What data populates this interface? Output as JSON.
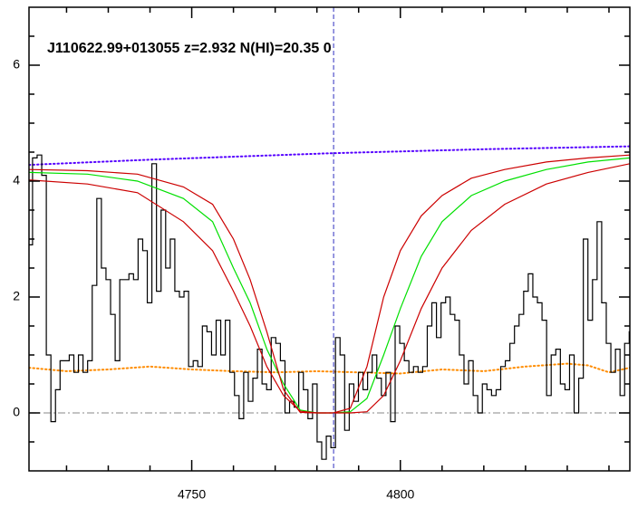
{
  "chart_data": {
    "type": "line",
    "annotation": "J110622.99+013055 z=2.932 N(HI)=20.35 0",
    "xlim": [
      4711,
      4855
    ],
    "ylim": [
      -1,
      7
    ],
    "xticks": [
      4750,
      4800
    ],
    "yticks": [
      0,
      2,
      4,
      6
    ],
    "xminorticks": [
      4720,
      4730,
      4740,
      4760,
      4770,
      4780,
      4790,
      4810,
      4820,
      4830,
      4840,
      4850
    ],
    "yminorticks": [
      -0.5,
      0.5,
      1,
      1.5,
      2.5,
      3,
      3.5,
      4.5,
      5,
      5.5,
      6.5
    ],
    "vline": {
      "x": 4784,
      "color": "#3030c0",
      "dash": true
    },
    "series": [
      {
        "color": "#a0a0a0",
        "dash": "dashdot",
        "x": [
          4711,
          4855
        ],
        "values": [
          0,
          0
        ]
      },
      {
        "color": "#ff8c00",
        "dash": "dot",
        "x": [
          4711,
          4720,
          4730,
          4740,
          4750,
          4760,
          4770,
          4780,
          4790,
          4800,
          4810,
          4820,
          4830,
          4840,
          4845,
          4850,
          4855
        ],
        "values": [
          0.78,
          0.72,
          0.75,
          0.8,
          0.75,
          0.72,
          0.7,
          0.72,
          0.7,
          0.68,
          0.75,
          0.72,
          0.8,
          0.85,
          0.82,
          0.7,
          0.78
        ]
      },
      {
        "color": "#5500ff",
        "dash": "dot",
        "x": [
          4711,
          4740,
          4783,
          4820,
          4855
        ],
        "values": [
          4.28,
          4.37,
          4.48,
          4.55,
          4.6
        ]
      },
      {
        "color": "#000000",
        "step": true,
        "x": [
          4711.3,
          4712.4,
          4713.5,
          4714.6,
          4715.7,
          4716.8,
          4717.9,
          4719.0,
          4720.1,
          4721.2,
          4722.3,
          4723.4,
          4724.5,
          4725.6,
          4726.7,
          4727.8,
          4728.9,
          4730.0,
          4731.1,
          4732.2,
          4733.3,
          4734.4,
          4735.5,
          4736.6,
          4737.7,
          4738.8,
          4739.9,
          4741.0,
          4742.1,
          4743.2,
          4744.3,
          4745.4,
          4746.5,
          4747.6,
          4748.7,
          4749.8,
          4750.9,
          4752.0,
          4753.1,
          4754.2,
          4755.3,
          4756.4,
          4757.5,
          4758.6,
          4759.7,
          4760.8,
          4761.9,
          4763.0,
          4764.1,
          4765.2,
          4766.3,
          4767.4,
          4768.5,
          4769.6,
          4770.7,
          4771.8,
          4772.9,
          4774.0,
          4775.1,
          4776.2,
          4777.3,
          4778.4,
          4779.5,
          4780.6,
          4781.7,
          4782.8,
          4783.9,
          4785.0,
          4786.1,
          4787.2,
          4788.3,
          4789.4,
          4790.5,
          4791.6,
          4792.7,
          4793.8,
          4794.9,
          4796.0,
          4797.1,
          4798.2,
          4799.3,
          4800.4,
          4801.5,
          4802.6,
          4803.7,
          4804.8,
          4805.9,
          4807.0,
          4808.1,
          4809.2,
          4810.3,
          4811.4,
          4812.5,
          4813.6,
          4814.7,
          4815.8,
          4816.9,
          4818.0,
          4819.1,
          4820.2,
          4821.3,
          4822.4,
          4823.5,
          4824.6,
          4825.7,
          4826.8,
          4827.9,
          4829.0,
          4830.1,
          4831.2,
          4832.3,
          4833.4,
          4834.5,
          4835.6,
          4836.7,
          4837.8,
          4838.9,
          4840.0,
          4841.1,
          4842.2,
          4843.3,
          4844.4,
          4845.5,
          4846.6,
          4847.7,
          4848.8,
          4849.9,
          4851.0,
          4852.1,
          4853.2,
          4854.3,
          4855.4
        ],
        "values": [
          2.9,
          4.4,
          4.45,
          4.1,
          1.0,
          -0.15,
          0.4,
          0.9,
          0.9,
          1.0,
          0.7,
          1.0,
          0.7,
          0.9,
          2.2,
          3.7,
          2.5,
          2.3,
          1.7,
          0.9,
          2.3,
          2.3,
          2.4,
          2.3,
          3.0,
          2.8,
          1.9,
          4.3,
          2.1,
          3.5,
          2.5,
          3.0,
          2.1,
          2.0,
          2.1,
          0.8,
          0.9,
          0.8,
          1.5,
          1.4,
          1.0,
          1.6,
          1.0,
          1.6,
          0.7,
          0.3,
          -0.1,
          0.7,
          0.2,
          0.6,
          1.1,
          0.5,
          0.4,
          1.3,
          1.2,
          0.9,
          0.0,
          0.2,
          0.1,
          0.7,
          0.4,
          -0.1,
          0.5,
          -0.5,
          -0.8,
          -0.4,
          -0.6,
          1.3,
          1.0,
          -0.3,
          0.5,
          0.2,
          0.7,
          0.4,
          0.7,
          1.0,
          0.6,
          0.3,
          0.7,
          -0.15,
          1.5,
          1.2,
          0.9,
          0.7,
          0.8,
          0.7,
          0.8,
          1.5,
          1.9,
          1.3,
          1.9,
          2.0,
          1.7,
          1.6,
          1.0,
          0.5,
          0.9,
          0.3,
          0.0,
          0.5,
          0.4,
          0.3,
          0.4,
          0.8,
          0.9,
          1.2,
          1.5,
          1.7,
          2.1,
          2.4,
          2.0,
          1.9,
          1.6,
          0.3,
          1.0,
          1.1,
          0.5,
          0.4,
          1.0,
          0.0,
          0.6,
          3.0,
          1.6,
          2.3,
          3.3,
          1.9,
          1.2,
          0.7,
          1.1,
          0.3,
          1.2,
          1.4
        ]
      },
      {
        "color": "#00e000",
        "x": [
          4711,
          4725,
          4737,
          4748,
          4755,
          4760,
          4764,
          4768,
          4772,
          4776,
          4780,
          4784,
          4788,
          4792,
          4796,
          4800,
          4805,
          4810,
          4817,
          4825,
          4835,
          4845,
          4855
        ],
        "values": [
          4.15,
          4.12,
          4.0,
          3.7,
          3.3,
          2.5,
          1.9,
          1.1,
          0.5,
          0.05,
          0,
          0,
          0.02,
          0.25,
          1.0,
          1.8,
          2.7,
          3.3,
          3.75,
          4.0,
          4.2,
          4.33,
          4.4
        ]
      },
      {
        "color": "#cc0000",
        "x": [
          4711,
          4725,
          4737,
          4748,
          4755,
          4760,
          4764,
          4768,
          4772,
          4776,
          4780,
          4784,
          4788,
          4792,
          4796,
          4800,
          4805,
          4810,
          4817,
          4825,
          4835,
          4845,
          4855
        ],
        "values": [
          4.2,
          4.18,
          4.12,
          3.9,
          3.6,
          3.0,
          2.3,
          1.4,
          0.4,
          0.01,
          0,
          0,
          0.08,
          0.8,
          2.0,
          2.8,
          3.4,
          3.75,
          4.05,
          4.2,
          4.33,
          4.4,
          4.45
        ]
      },
      {
        "color": "#cc0000",
        "x": [
          4711,
          4725,
          4737,
          4748,
          4755,
          4760,
          4764,
          4768,
          4772,
          4776,
          4780,
          4784,
          4788,
          4792,
          4796,
          4800,
          4805,
          4810,
          4817,
          4825,
          4835,
          4845,
          4855
        ],
        "values": [
          4.02,
          3.95,
          3.8,
          3.3,
          2.8,
          2.1,
          1.5,
          0.8,
          0.3,
          0.03,
          0,
          0,
          0,
          0.02,
          0.3,
          0.9,
          1.8,
          2.5,
          3.15,
          3.6,
          3.95,
          4.15,
          4.3
        ]
      }
    ]
  }
}
